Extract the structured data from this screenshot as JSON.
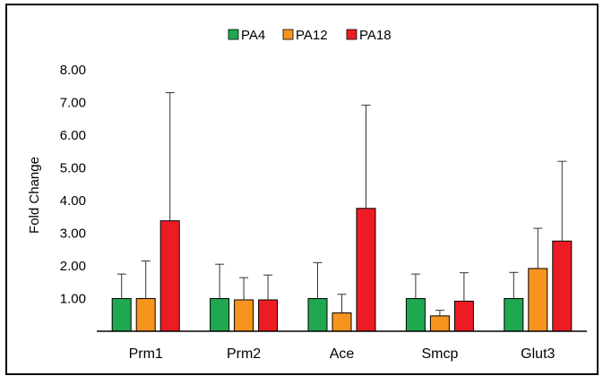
{
  "chart_data": {
    "type": "bar",
    "title": "",
    "xlabel": "",
    "ylabel": "Fold Change",
    "ylim": [
      0,
      8
    ],
    "yticks": [
      "8.00",
      "7.00",
      "6.00",
      "5.00",
      "4.00",
      "3.00",
      "2.00",
      "1.00"
    ],
    "categories": [
      "Prm1",
      "Prm2",
      "Ace",
      "Smcp",
      "Glut3"
    ],
    "series": [
      {
        "name": "PA4",
        "color": "#1fa84f",
        "values": [
          1.0,
          1.0,
          1.0,
          1.0,
          1.0
        ],
        "error": [
          0.75,
          1.05,
          1.1,
          0.75,
          0.8
        ]
      },
      {
        "name": "PA12",
        "color": "#f7941d",
        "values": [
          1.0,
          0.96,
          0.56,
          0.47,
          1.92
        ],
        "error": [
          1.15,
          0.68,
          0.57,
          0.17,
          1.23
        ]
      },
      {
        "name": "PA18",
        "color": "#ed1c24",
        "values": [
          3.38,
          0.96,
          3.76,
          0.92,
          2.76
        ],
        "error": [
          3.92,
          0.76,
          3.16,
          0.87,
          2.44
        ]
      }
    ],
    "grid": false,
    "legend_position": "top-center",
    "error_bars": true
  }
}
